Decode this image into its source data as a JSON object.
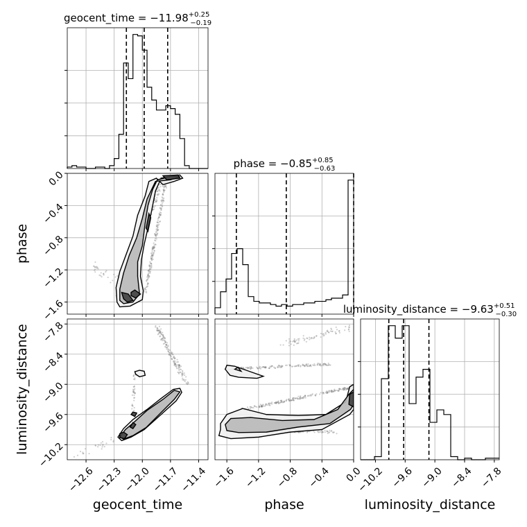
{
  "chart_data": {
    "type": "corner",
    "parameters": [
      "geocent_time",
      "phase",
      "luminosity_distance"
    ],
    "axis_labels": {
      "geocent_time": "geocent_time",
      "phase": "phase",
      "luminosity_distance": "luminosity_distance"
    },
    "ranges": {
      "geocent_time": [
        -12.8,
        -11.3
      ],
      "phase": [
        -1.75,
        0.0
      ],
      "luminosity_distance": [
        -10.5,
        -7.7
      ]
    },
    "ticks": {
      "geocent_time": [
        "-12.6",
        "-12.3",
        "-12.0",
        "-11.7",
        "-11.4"
      ],
      "phase": [
        "-1.6",
        "-1.2",
        "-0.8",
        "-0.4",
        "0.0"
      ],
      "luminosity_distance": [
        "-10.2",
        "-9.6",
        "-9.0",
        "-8.4",
        "-7.8"
      ]
    },
    "titles": [
      {
        "param": "geocent_time",
        "prefix": "geocent_time = ",
        "median": "−11.98",
        "plus": "+0.25",
        "minus": "−0.19"
      },
      {
        "param": "phase",
        "prefix": "phase = ",
        "median": "−0.85",
        "plus": "+0.85",
        "minus": "−0.63"
      },
      {
        "param": "luminosity_distance",
        "prefix": "luminosity_distance = ",
        "median": "−9.63",
        "plus": "+0.51",
        "minus": "−0.30"
      }
    ],
    "quantiles": {
      "geocent_time": [
        -12.17,
        -11.98,
        -11.73
      ],
      "phase": [
        -1.48,
        -0.85,
        0.0
      ],
      "luminosity_distance": [
        -9.93,
        -9.63,
        -9.12
      ]
    },
    "histograms": {
      "geocent_time": {
        "edges": [
          -12.8,
          -12.75,
          -12.7,
          -12.65,
          -12.6,
          -12.55,
          -12.5,
          -12.45,
          -12.4,
          -12.35,
          -12.3,
          -12.25,
          -12.2,
          -12.15,
          -12.1,
          -12.05,
          -12.0,
          -11.95,
          -11.9,
          -11.85,
          -11.8,
          -11.75,
          -11.7,
          -11.65,
          -11.6,
          -11.55,
          -11.5,
          -11.45,
          -11.4,
          -11.35,
          -11.3
        ],
        "counts": [
          0.01,
          0.02,
          0.01,
          0.01,
          0.0,
          0.0,
          0.01,
          0.01,
          0.0,
          0.02,
          0.07,
          0.24,
          0.74,
          0.63,
          0.94,
          0.93,
          0.83,
          0.57,
          0.48,
          0.41,
          0.41,
          0.44,
          0.42,
          0.38,
          0.21,
          0.02,
          0.0,
          0.0,
          0.0,
          0.0
        ]
      },
      "phase": {
        "edges": [
          -1.75,
          -1.68,
          -1.61,
          -1.54,
          -1.47,
          -1.4,
          -1.33,
          -1.26,
          -1.19,
          -1.12,
          -1.05,
          -0.98,
          -0.91,
          -0.84,
          -0.77,
          -0.7,
          -0.63,
          -0.56,
          -0.49,
          -0.42,
          -0.35,
          -0.28,
          -0.21,
          -0.14,
          -0.07,
          0.0
        ],
        "counts": [
          0.04,
          0.14,
          0.22,
          0.38,
          0.41,
          0.31,
          0.11,
          0.08,
          0.07,
          0.07,
          0.06,
          0.05,
          0.06,
          0.05,
          0.06,
          0.06,
          0.07,
          0.07,
          0.08,
          0.08,
          0.09,
          0.1,
          0.1,
          0.12,
          0.84
        ]
      },
      "luminosity_distance": {
        "edges": [
          -10.5,
          -10.36,
          -10.22,
          -10.08,
          -9.94,
          -9.8,
          -9.66,
          -9.52,
          -9.38,
          -9.24,
          -9.1,
          -8.96,
          -8.82,
          -8.68,
          -8.54,
          -8.4,
          -8.26,
          -8.12,
          -7.98,
          -7.84,
          -7.7
        ],
        "counts": [
          0.0,
          0.0,
          0.02,
          0.52,
          0.86,
          0.78,
          0.86,
          0.36,
          0.53,
          0.58,
          0.24,
          0.32,
          0.29,
          0.02,
          0.0,
          0.01,
          0.0,
          0.0,
          0.01,
          0.01
        ]
      }
    },
    "joint_contours": {
      "geocent_time_vs_phase": [
        {
          "level": "outer",
          "points": [
            [
              -12.27,
              -1.6
            ],
            [
              -12.24,
              -1.66
            ],
            [
              -12.13,
              -1.65
            ],
            [
              -12.0,
              -1.57
            ],
            [
              -11.99,
              -1.46
            ],
            [
              -12.02,
              -1.28
            ],
            [
              -12.01,
              -1.08
            ],
            [
              -11.98,
              -0.88
            ],
            [
              -11.94,
              -0.68
            ],
            [
              -11.9,
              -0.46
            ],
            [
              -11.86,
              -0.22
            ],
            [
              -11.8,
              -0.06
            ],
            [
              -11.6,
              -0.02
            ],
            [
              -11.57,
              -0.06
            ],
            [
              -11.66,
              -0.1
            ],
            [
              -11.78,
              -0.14
            ],
            [
              -11.85,
              -0.06
            ],
            [
              -11.93,
              -0.1
            ],
            [
              -11.97,
              -0.28
            ],
            [
              -12.05,
              -0.52
            ],
            [
              -12.1,
              -0.78
            ],
            [
              -12.17,
              -1.0
            ],
            [
              -12.24,
              -1.22
            ],
            [
              -12.28,
              -1.42
            ]
          ]
        },
        {
          "level": "mid",
          "points": [
            [
              -12.24,
              -1.58
            ],
            [
              -12.2,
              -1.62
            ],
            [
              -12.1,
              -1.6
            ],
            [
              -12.03,
              -1.5
            ],
            [
              -12.05,
              -1.28
            ],
            [
              -12.05,
              -1.1
            ],
            [
              -12.0,
              -0.9
            ],
            [
              -11.97,
              -0.62
            ],
            [
              -11.94,
              -0.4
            ],
            [
              -11.89,
              -0.2
            ],
            [
              -11.84,
              -0.08
            ],
            [
              -11.7,
              -0.04
            ],
            [
              -11.6,
              -0.04
            ],
            [
              -11.7,
              -0.08
            ],
            [
              -11.86,
              -0.1
            ],
            [
              -11.95,
              -0.32
            ],
            [
              -12.0,
              -0.56
            ],
            [
              -12.06,
              -0.8
            ],
            [
              -12.14,
              -1.02
            ],
            [
              -12.2,
              -1.24
            ],
            [
              -12.24,
              -1.44
            ]
          ]
        },
        {
          "level": "inner",
          "points": [
            [
              -12.2,
              -1.56
            ],
            [
              -12.16,
              -1.6
            ],
            [
              -12.1,
              -1.58
            ],
            [
              -12.15,
              -1.5
            ],
            [
              -12.22,
              -1.48
            ]
          ]
        },
        {
          "level": "inner",
          "points": [
            [
              -12.12,
              -1.52
            ],
            [
              -12.07,
              -1.55
            ],
            [
              -12.02,
              -1.5
            ],
            [
              -12.08,
              -1.45
            ],
            [
              -12.12,
              -1.48
            ]
          ]
        },
        {
          "level": "inner",
          "points": [
            [
              -11.96,
              -0.68
            ],
            [
              -11.94,
              -0.72
            ],
            [
              -11.91,
              -0.55
            ],
            [
              -11.93,
              -0.5
            ]
          ]
        },
        {
          "level": "inner",
          "points": [
            [
              -11.78,
              -0.03
            ],
            [
              -11.62,
              -0.02
            ],
            [
              -11.6,
              -0.06
            ],
            [
              -11.74,
              -0.08
            ]
          ]
        }
      ],
      "geocent_time_vs_luminosity_distance": [
        {
          "level": "outer",
          "points": [
            [
              -12.26,
              -10.05
            ],
            [
              -12.22,
              -10.12
            ],
            [
              -12.12,
              -10.05
            ],
            [
              -11.98,
              -9.9
            ],
            [
              -11.8,
              -9.6
            ],
            [
              -11.64,
              -9.33
            ],
            [
              -11.58,
              -9.16
            ],
            [
              -11.6,
              -9.08
            ],
            [
              -11.67,
              -9.1
            ],
            [
              -11.8,
              -9.28
            ],
            [
              -11.95,
              -9.5
            ],
            [
              -12.1,
              -9.7
            ],
            [
              -12.2,
              -9.88
            ]
          ]
        },
        {
          "level": "mid",
          "points": [
            [
              -12.24,
              -10.05
            ],
            [
              -12.2,
              -10.09
            ],
            [
              -12.1,
              -10.02
            ],
            [
              -11.96,
              -9.86
            ],
            [
              -11.8,
              -9.56
            ],
            [
              -11.66,
              -9.3
            ],
            [
              -11.6,
              -9.15
            ],
            [
              -11.66,
              -9.12
            ],
            [
              -11.78,
              -9.3
            ],
            [
              -11.95,
              -9.52
            ],
            [
              -12.08,
              -9.74
            ],
            [
              -12.18,
              -9.9
            ]
          ]
        },
        {
          "level": "inner",
          "points": [
            [
              -12.24,
              -10.06
            ],
            [
              -12.19,
              -10.08
            ],
            [
              -12.16,
              -10.0
            ],
            [
              -12.2,
              -9.95
            ],
            [
              -12.24,
              -9.98
            ]
          ]
        },
        {
          "level": "inner",
          "points": [
            [
              -12.13,
              -9.85
            ],
            [
              -12.1,
              -9.88
            ],
            [
              -12.07,
              -9.8
            ],
            [
              -12.1,
              -9.76
            ]
          ]
        },
        {
          "level": "inner",
          "points": [
            [
              -12.12,
              -9.6
            ],
            [
              -12.08,
              -9.64
            ],
            [
              -12.06,
              -9.57
            ],
            [
              -12.1,
              -9.55
            ]
          ]
        },
        {
          "level": "outer",
          "points": [
            [
              -12.07,
              -8.8
            ],
            [
              -12.03,
              -8.85
            ],
            [
              -11.97,
              -8.82
            ],
            [
              -11.98,
              -8.74
            ],
            [
              -12.03,
              -8.72
            ],
            [
              -12.08,
              -8.75
            ]
          ]
        }
      ],
      "phase_vs_luminosity_distance": [
        {
          "level": "outer",
          "points": [
            [
              -1.62,
              -8.7
            ],
            [
              -1.56,
              -8.82
            ],
            [
              -1.45,
              -8.86
            ],
            [
              -1.22,
              -8.88
            ],
            [
              -1.14,
              -8.84
            ],
            [
              -1.32,
              -8.74
            ],
            [
              -1.5,
              -8.64
            ],
            [
              -1.6,
              -8.62
            ]
          ]
        },
        {
          "level": "mid",
          "points": [
            [
              -1.5,
              -8.7
            ],
            [
              -1.42,
              -8.74
            ],
            [
              -1.46,
              -8.66
            ]
          ]
        },
        {
          "level": "outer",
          "points": [
            [
              -1.68,
              -9.9
            ],
            [
              -1.7,
              -10.02
            ],
            [
              -1.55,
              -10.08
            ],
            [
              -1.2,
              -10.05
            ],
            [
              -0.8,
              -9.95
            ],
            [
              -0.4,
              -9.9
            ],
            [
              -0.05,
              -9.6
            ],
            [
              0.0,
              -9.5
            ],
            [
              0.0,
              -9.0
            ],
            [
              -0.05,
              -9.05
            ],
            [
              -0.1,
              -9.35
            ],
            [
              -0.35,
              -9.6
            ],
            [
              -0.7,
              -9.62
            ],
            [
              -1.1,
              -9.6
            ],
            [
              -1.4,
              -9.48
            ],
            [
              -1.6,
              -9.6
            ],
            [
              -1.68,
              -9.78
            ]
          ]
        },
        {
          "level": "mid",
          "points": [
            [
              -1.62,
              -9.8
            ],
            [
              -1.6,
              -9.92
            ],
            [
              -1.45,
              -9.96
            ],
            [
              -1.1,
              -9.95
            ],
            [
              -0.7,
              -9.85
            ],
            [
              -0.3,
              -9.78
            ],
            [
              -0.04,
              -9.5
            ],
            [
              0.0,
              -9.4
            ],
            [
              0.0,
              -9.1
            ],
            [
              -0.06,
              -9.2
            ],
            [
              -0.2,
              -9.5
            ],
            [
              -0.5,
              -9.7
            ],
            [
              -0.9,
              -9.72
            ],
            [
              -1.3,
              -9.66
            ],
            [
              -1.55,
              -9.68
            ]
          ]
        },
        {
          "level": "inner",
          "points": [
            [
              -0.06,
              -9.4
            ],
            [
              0.0,
              -9.45
            ],
            [
              0.0,
              -9.15
            ],
            [
              -0.05,
              -9.2
            ]
          ]
        }
      ]
    },
    "grid": true
  }
}
